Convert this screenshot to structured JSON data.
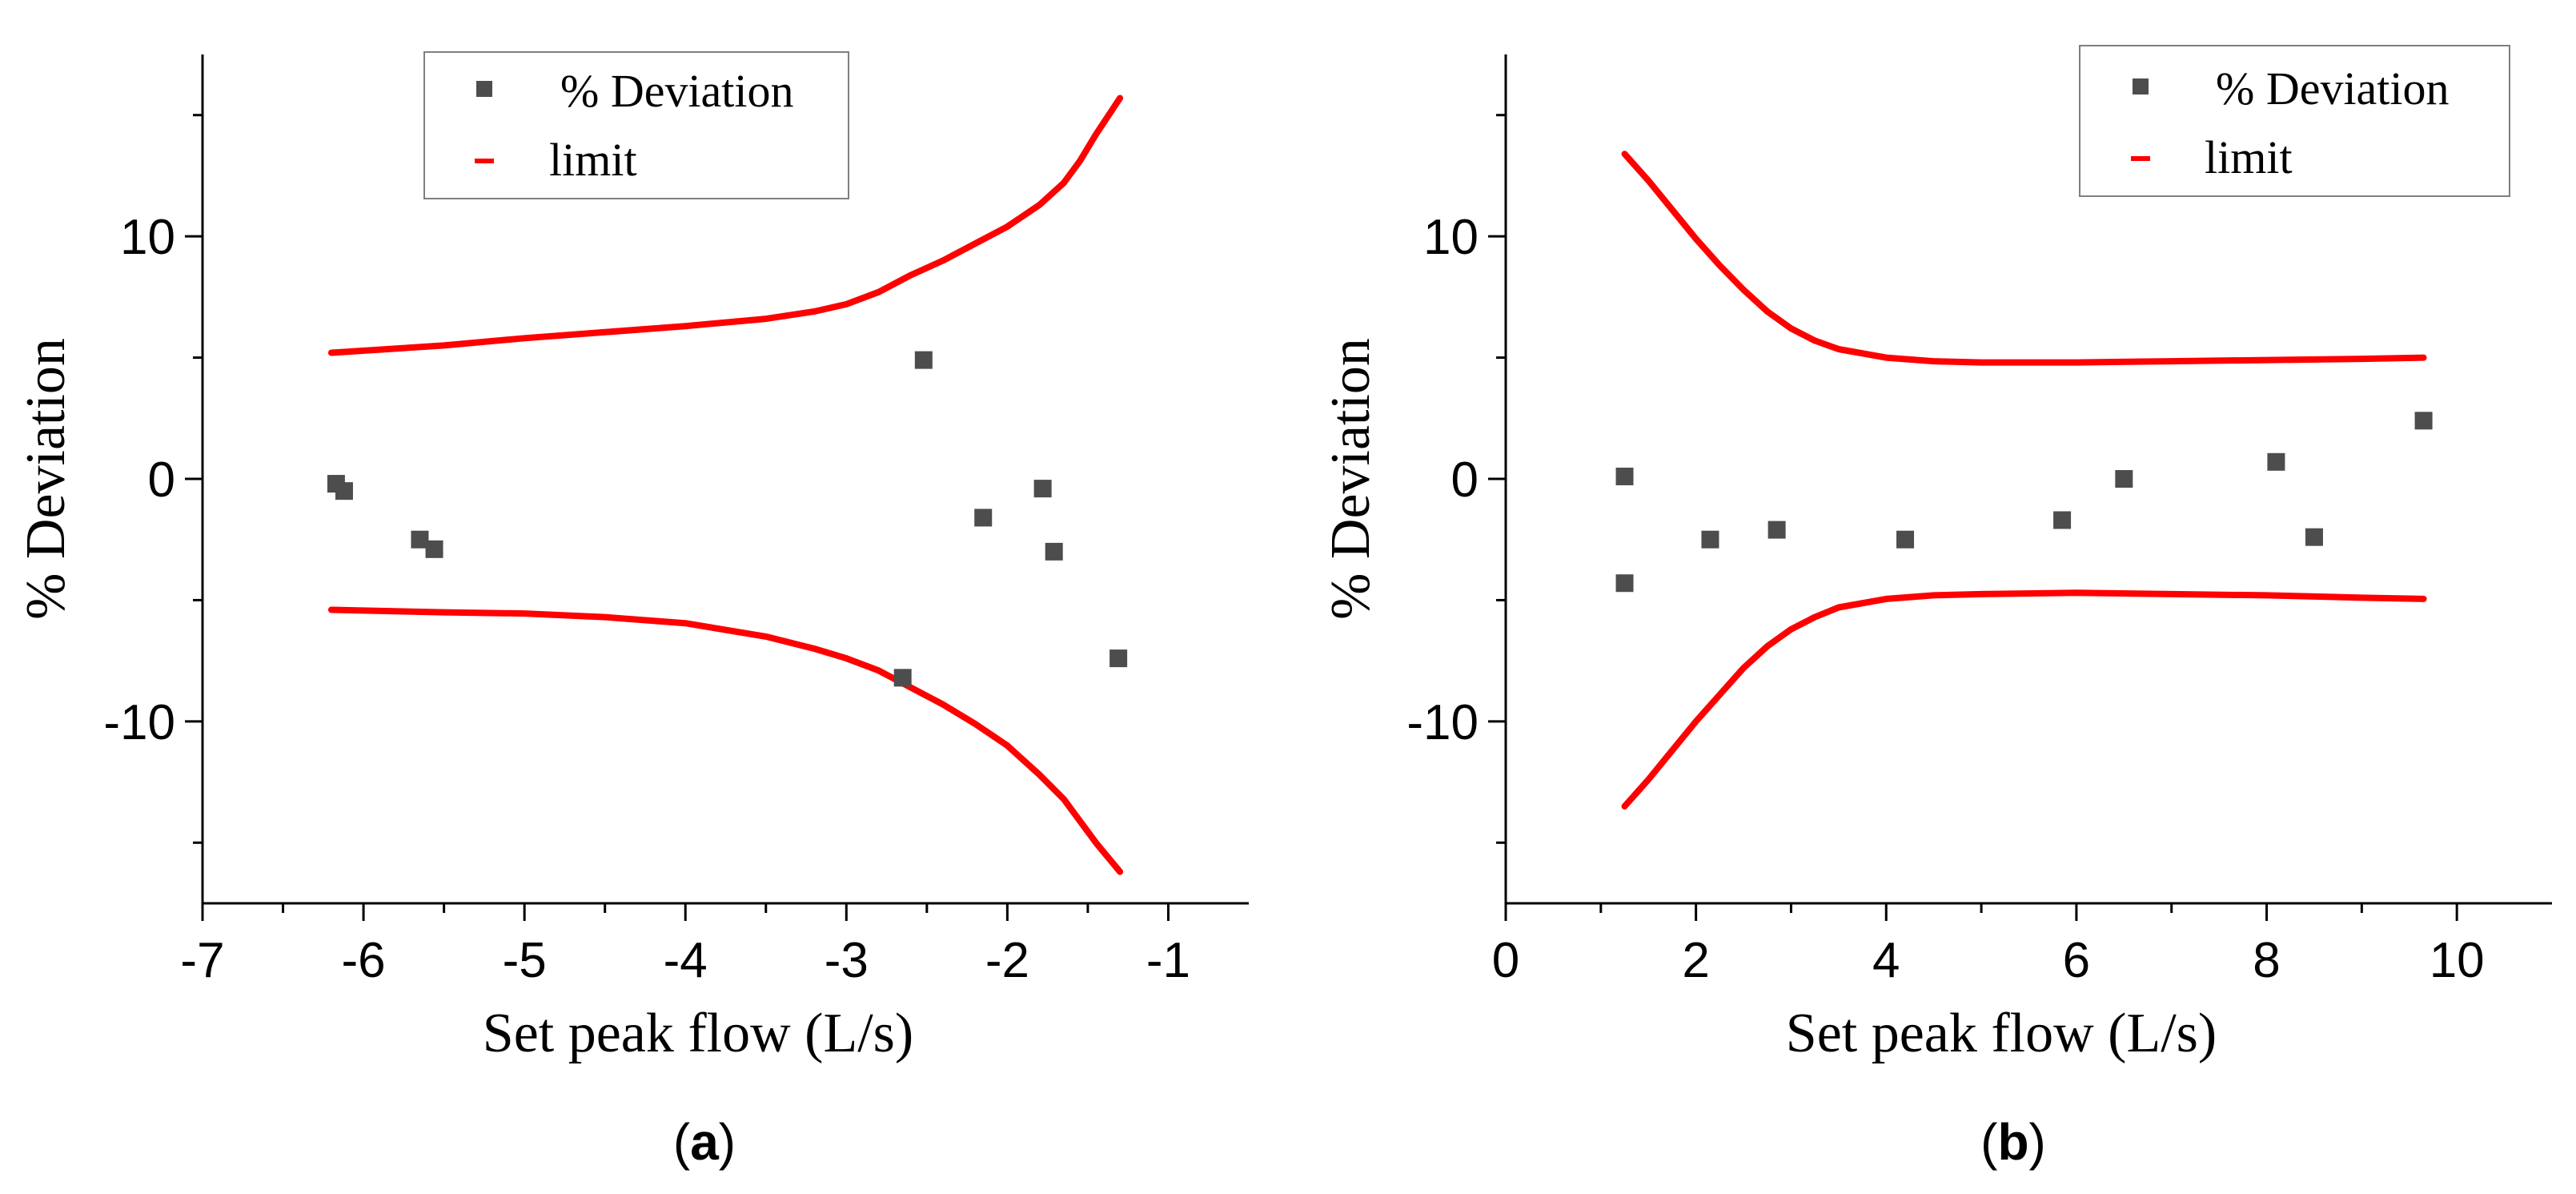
{
  "chart_data": [
    {
      "type": "scatter",
      "panel_label": "a",
      "title": "",
      "xlabel": "Set peak flow (L/s)",
      "ylabel": "% Deviation",
      "xlim": [
        -7,
        -0.5
      ],
      "ylim": [
        -17.5,
        17.5
      ],
      "x_ticks": [
        -7,
        -6,
        -5,
        -4,
        -3,
        -2,
        -1
      ],
      "x_tick_labels": [
        "-7",
        "-6",
        "-5",
        "-4",
        "-3",
        "-2",
        "-1"
      ],
      "y_ticks": [
        -10,
        0,
        10
      ],
      "y_tick_labels": [
        "-10",
        "0",
        "10"
      ],
      "grid": false,
      "legend_position": "top-center",
      "series": [
        {
          "name": "% Deviation",
          "type": "scatter",
          "color": "#4d4d4d",
          "points": [
            {
              "x": -6.17,
              "y": -0.2
            },
            {
              "x": -6.12,
              "y": -0.5
            },
            {
              "x": -5.65,
              "y": -2.5
            },
            {
              "x": -5.56,
              "y": -2.9
            },
            {
              "x": -2.65,
              "y": -8.2
            },
            {
              "x": -2.52,
              "y": 4.9
            },
            {
              "x": -2.15,
              "y": -1.6
            },
            {
              "x": -1.78,
              "y": -0.4
            },
            {
              "x": -1.71,
              "y": -3.0
            },
            {
              "x": -1.31,
              "y": -7.4
            }
          ]
        },
        {
          "name": "limit",
          "type": "line",
          "color": "#ff0000",
          "upper": [
            {
              "x": -6.2,
              "y": 5.2
            },
            {
              "x": -5.5,
              "y": 5.5
            },
            {
              "x": -5.0,
              "y": 5.8
            },
            {
              "x": -4.5,
              "y": 6.05
            },
            {
              "x": -4.0,
              "y": 6.3
            },
            {
              "x": -3.5,
              "y": 6.6
            },
            {
              "x": -3.2,
              "y": 6.9
            },
            {
              "x": -3.0,
              "y": 7.2
            },
            {
              "x": -2.8,
              "y": 7.7
            },
            {
              "x": -2.6,
              "y": 8.4
            },
            {
              "x": -2.4,
              "y": 9.0
            },
            {
              "x": -2.2,
              "y": 9.7
            },
            {
              "x": -2.0,
              "y": 10.4
            },
            {
              "x": -1.8,
              "y": 11.3
            },
            {
              "x": -1.65,
              "y": 12.2
            },
            {
              "x": -1.55,
              "y": 13.1
            },
            {
              "x": -1.45,
              "y": 14.2
            },
            {
              "x": -1.3,
              "y": 15.7
            }
          ],
          "lower": [
            {
              "x": -6.2,
              "y": -5.4
            },
            {
              "x": -5.5,
              "y": -5.5
            },
            {
              "x": -5.0,
              "y": -5.55
            },
            {
              "x": -4.5,
              "y": -5.7
            },
            {
              "x": -4.0,
              "y": -5.95
            },
            {
              "x": -3.5,
              "y": -6.5
            },
            {
              "x": -3.2,
              "y": -7.0
            },
            {
              "x": -3.0,
              "y": -7.4
            },
            {
              "x": -2.8,
              "y": -7.9
            },
            {
              "x": -2.6,
              "y": -8.6
            },
            {
              "x": -2.4,
              "y": -9.3
            },
            {
              "x": -2.2,
              "y": -10.1
            },
            {
              "x": -2.0,
              "y": -11.0
            },
            {
              "x": -1.8,
              "y": -12.2
            },
            {
              "x": -1.65,
              "y": -13.2
            },
            {
              "x": -1.55,
              "y": -14.1
            },
            {
              "x": -1.45,
              "y": -15.0
            },
            {
              "x": -1.3,
              "y": -16.2
            }
          ]
        }
      ]
    },
    {
      "type": "scatter",
      "panel_label": "b",
      "title": "",
      "xlabel": "Set peak flow (L/s)",
      "ylabel": "% Deviation",
      "xlim": [
        0,
        11
      ],
      "ylim": [
        -17.5,
        17.5
      ],
      "x_ticks": [
        0,
        2,
        4,
        6,
        8,
        10
      ],
      "x_tick_labels": [
        "0",
        "2",
        "4",
        "6",
        "8",
        "10"
      ],
      "y_ticks": [
        -10,
        0,
        10
      ],
      "y_tick_labels": [
        "-10",
        "0",
        "10"
      ],
      "grid": false,
      "legend_position": "top-right",
      "series": [
        {
          "name": "% Deviation",
          "type": "scatter",
          "color": "#4d4d4d",
          "points": [
            {
              "x": 1.25,
              "y": 0.1
            },
            {
              "x": 1.25,
              "y": -4.3
            },
            {
              "x": 2.15,
              "y": -2.5
            },
            {
              "x": 2.85,
              "y": -2.1
            },
            {
              "x": 4.2,
              "y": -2.5
            },
            {
              "x": 5.85,
              "y": -1.7
            },
            {
              "x": 6.5,
              "y": 0.0
            },
            {
              "x": 8.1,
              "y": 0.7
            },
            {
              "x": 8.5,
              "y": -2.4
            },
            {
              "x": 9.65,
              "y": 2.4
            }
          ]
        },
        {
          "name": "limit",
          "type": "line",
          "color": "#ff0000",
          "upper": [
            {
              "x": 1.25,
              "y": 13.4
            },
            {
              "x": 1.5,
              "y": 12.3
            },
            {
              "x": 1.75,
              "y": 11.1
            },
            {
              "x": 2.0,
              "y": 9.9
            },
            {
              "x": 2.25,
              "y": 8.8
            },
            {
              "x": 2.5,
              "y": 7.8
            },
            {
              "x": 2.75,
              "y": 6.9
            },
            {
              "x": 3.0,
              "y": 6.2
            },
            {
              "x": 3.25,
              "y": 5.7
            },
            {
              "x": 3.5,
              "y": 5.35
            },
            {
              "x": 4.0,
              "y": 5.0
            },
            {
              "x": 4.5,
              "y": 4.85
            },
            {
              "x": 5.0,
              "y": 4.8
            },
            {
              "x": 6.0,
              "y": 4.8
            },
            {
              "x": 7.0,
              "y": 4.85
            },
            {
              "x": 8.0,
              "y": 4.9
            },
            {
              "x": 9.0,
              "y": 4.95
            },
            {
              "x": 9.65,
              "y": 5.0
            }
          ],
          "lower": [
            {
              "x": 1.25,
              "y": -13.5
            },
            {
              "x": 1.5,
              "y": -12.4
            },
            {
              "x": 1.75,
              "y": -11.2
            },
            {
              "x": 2.0,
              "y": -10.0
            },
            {
              "x": 2.25,
              "y": -8.9
            },
            {
              "x": 2.5,
              "y": -7.8
            },
            {
              "x": 2.75,
              "y": -6.9
            },
            {
              "x": 3.0,
              "y": -6.2
            },
            {
              "x": 3.25,
              "y": -5.7
            },
            {
              "x": 3.5,
              "y": -5.3
            },
            {
              "x": 4.0,
              "y": -4.95
            },
            {
              "x": 4.5,
              "y": -4.8
            },
            {
              "x": 5.0,
              "y": -4.75
            },
            {
              "x": 6.0,
              "y": -4.7
            },
            {
              "x": 7.0,
              "y": -4.75
            },
            {
              "x": 8.0,
              "y": -4.8
            },
            {
              "x": 9.0,
              "y": -4.9
            },
            {
              "x": 9.65,
              "y": -4.95
            }
          ]
        }
      ]
    }
  ]
}
